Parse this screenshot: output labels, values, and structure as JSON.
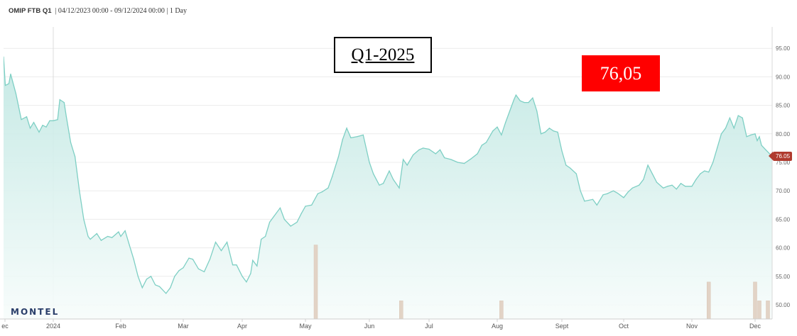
{
  "header": {
    "instrument": "OMIP FTB Q1",
    "details": "| 04/12/2023 00:00 - 09/12/2024 00:00 | 1 Day"
  },
  "overlays": {
    "quarter_label": "Q1-2025",
    "price_label": "76,05"
  },
  "price_tag": {
    "label": "76.05",
    "value": 76.05
  },
  "watermark": "MONTEL",
  "colors": {
    "line": "#7ecfc4",
    "area_top": "#bfe7e2",
    "area_bottom": "#f7fcfb",
    "volume": "#e2d3c6",
    "grid": "#ececec",
    "price_box": "#ff0000",
    "price_tag": "#b03a2e"
  },
  "chart_data": {
    "type": "area",
    "title": "OMIP FTB Q1",
    "ylim": [
      47.5,
      98
    ],
    "y_ticks": [
      "50.00",
      "55.00",
      "60.00",
      "65.00",
      "70.00",
      "75.00",
      "80.00",
      "85.00",
      "90.00",
      "95.00"
    ],
    "x_tick_labels": [
      {
        "label": "ec",
        "date": "2023-12-01"
      },
      {
        "label": "2024",
        "date": "2024-01-01"
      },
      {
        "label": "Feb",
        "date": "2024-02-01"
      },
      {
        "label": "Mar",
        "date": "2024-03-01"
      },
      {
        "label": "Apr",
        "date": "2024-04-01"
      },
      {
        "label": "May",
        "date": "2024-05-01"
      },
      {
        "label": "Jun",
        "date": "2024-06-01"
      },
      {
        "label": "Jul",
        "date": "2024-07-01"
      },
      {
        "label": "Aug",
        "date": "2024-08-01"
      },
      {
        "label": "Sept",
        "date": "2024-09-01"
      },
      {
        "label": "Oct",
        "date": "2024-10-01"
      },
      {
        "label": "Nov",
        "date": "2024-11-01"
      },
      {
        "label": "Dec",
        "date": "2024-12-01"
      }
    ],
    "grid": true,
    "series": [
      {
        "x": [
          "2023-12-04",
          "2023-12-05",
          "2023-12-07",
          "2023-12-08",
          "2023-12-11",
          "2023-12-14",
          "2023-12-17",
          "2023-12-19",
          "2023-12-21",
          "2023-12-24",
          "2023-12-26",
          "2023-12-28",
          "2023-12-30",
          "2024-01-01",
          "2024-01-03",
          "2024-01-04",
          "2024-01-06",
          "2024-01-07",
          "2024-01-09",
          "2024-01-11",
          "2024-01-13",
          "2024-01-15",
          "2024-01-17",
          "2024-01-18",
          "2024-01-21",
          "2024-01-23",
          "2024-01-26",
          "2024-01-28",
          "2024-01-31",
          "2024-02-01",
          "2024-02-03",
          "2024-02-05",
          "2024-02-07",
          "2024-02-09",
          "2024-02-11",
          "2024-02-13",
          "2024-02-15",
          "2024-02-17",
          "2024-02-19",
          "2024-02-22",
          "2024-02-24",
          "2024-02-26",
          "2024-02-28",
          "2024-03-01",
          "2024-03-04",
          "2024-03-06",
          "2024-03-09",
          "2024-03-12",
          "2024-03-15",
          "2024-03-18",
          "2024-03-21",
          "2024-03-24",
          "2024-03-27",
          "2024-03-29",
          "2024-04-01",
          "2024-04-03",
          "2024-04-05",
          "2024-04-06",
          "2024-04-08",
          "2024-04-10",
          "2024-04-12",
          "2024-04-14",
          "2024-04-16",
          "2024-04-19",
          "2024-04-21",
          "2024-04-24",
          "2024-04-27",
          "2024-04-29",
          "2024-05-01",
          "2024-05-04",
          "2024-05-07",
          "2024-05-09",
          "2024-05-12",
          "2024-05-14",
          "2024-05-17",
          "2024-05-19",
          "2024-05-21",
          "2024-05-23",
          "2024-05-26",
          "2024-05-29",
          "2024-06-01",
          "2024-06-03",
          "2024-06-06",
          "2024-06-08",
          "2024-06-11",
          "2024-06-13",
          "2024-06-16",
          "2024-06-18",
          "2024-06-20",
          "2024-06-23",
          "2024-06-26",
          "2024-06-28",
          "2024-07-01",
          "2024-07-04",
          "2024-07-06",
          "2024-07-08",
          "2024-07-11",
          "2024-07-14",
          "2024-07-17",
          "2024-07-20",
          "2024-07-23",
          "2024-07-25",
          "2024-07-27",
          "2024-07-30",
          "2024-08-01",
          "2024-08-03",
          "2024-08-05",
          "2024-08-07",
          "2024-08-09",
          "2024-08-10",
          "2024-08-12",
          "2024-08-14",
          "2024-08-16",
          "2024-08-18",
          "2024-08-20",
          "2024-08-22",
          "2024-08-24",
          "2024-08-26",
          "2024-08-28",
          "2024-08-30",
          "2024-09-01",
          "2024-09-03",
          "2024-09-05",
          "2024-09-08",
          "2024-09-10",
          "2024-09-12",
          "2024-09-16",
          "2024-09-18",
          "2024-09-21",
          "2024-09-23",
          "2024-09-26",
          "2024-09-28",
          "2024-10-01",
          "2024-10-03",
          "2024-10-05",
          "2024-10-08",
          "2024-10-10",
          "2024-10-12",
          "2024-10-14",
          "2024-10-16",
          "2024-10-19",
          "2024-10-21",
          "2024-10-23",
          "2024-10-25",
          "2024-10-27",
          "2024-10-29",
          "2024-11-01",
          "2024-11-03",
          "2024-11-05",
          "2024-11-07",
          "2024-11-09",
          "2024-11-11",
          "2024-11-13",
          "2024-11-15",
          "2024-11-17",
          "2024-11-19",
          "2024-11-21",
          "2024-11-23",
          "2024-11-25",
          "2024-11-27",
          "2024-11-29",
          "2024-12-01",
          "2024-12-02",
          "2024-12-03",
          "2024-12-04",
          "2024-12-06",
          "2024-12-09"
        ],
        "values": [
          93.5,
          88.5,
          88.8,
          90.5,
          87,
          82.5,
          83,
          81,
          82,
          80.3,
          81.5,
          81.2,
          82.3,
          82.3,
          82.5,
          86,
          85.5,
          83,
          78.5,
          76,
          70,
          65,
          62,
          61.5,
          62.5,
          61.3,
          62,
          61.8,
          62.8,
          62,
          63,
          60.5,
          58,
          55,
          53,
          54.5,
          55,
          53.5,
          53.2,
          52,
          53,
          55,
          56,
          56.5,
          58.2,
          58,
          56.3,
          55.8,
          58,
          61,
          59.5,
          61,
          57,
          57,
          55,
          54,
          55.5,
          57.8,
          56.8,
          61.5,
          62,
          64.5,
          65.5,
          67,
          65,
          63.8,
          64.5,
          66,
          67.3,
          67.5,
          69.5,
          69.8,
          70.5,
          72.5,
          76,
          79,
          81,
          79.3,
          79.5,
          79.8,
          75,
          73,
          71,
          71.3,
          73.5,
          72,
          70.5,
          75.5,
          74.5,
          76.3,
          77.2,
          77.5,
          77.3,
          76.5,
          77.2,
          75.8,
          75.5,
          75,
          74.8,
          75.6,
          76.5,
          78,
          78.5,
          80.5,
          81.2,
          79.8,
          82,
          84,
          86,
          86.8,
          85.8,
          85.5,
          85.5,
          86.3,
          84,
          80,
          80.3,
          81,
          80.5,
          80.3,
          77,
          74.5,
          74,
          73,
          70,
          68.2,
          68.5,
          67.5,
          69.3,
          69.5,
          70,
          69.6,
          68.8,
          69.8,
          70.5,
          71,
          72,
          74.5,
          73,
          71.5,
          70.5,
          70.8,
          71,
          70.3,
          71.3,
          70.8,
          70.8,
          72,
          73,
          73.5,
          73.3,
          75,
          77.5,
          80,
          81,
          82.8,
          81,
          83.2,
          82.8,
          79.5,
          79.8,
          80,
          78.8,
          79.5,
          78,
          77.2,
          76.05
        ]
      }
    ],
    "volume": {
      "x": [
        "2024-05-06",
        "2024-06-17",
        "2024-08-03",
        "2024-11-09",
        "2024-12-01",
        "2024-12-03",
        "2024-12-07"
      ],
      "values": [
        60.5,
        50.7,
        50.7,
        54,
        54,
        50.7,
        50.7
      ]
    }
  }
}
